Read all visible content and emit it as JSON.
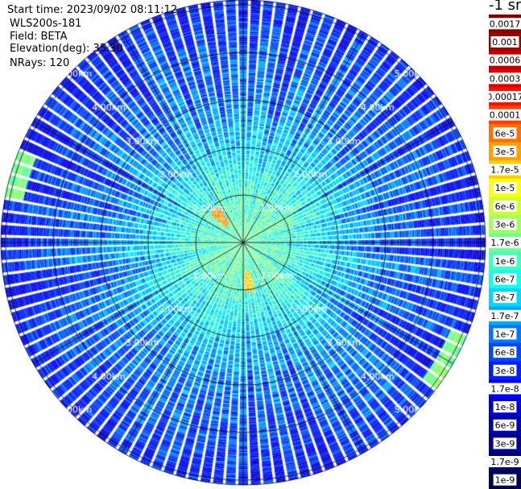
{
  "header": {
    "start_time": "Start time: 2023/09/02 08:11:12",
    "instrument": "WLS200s-181",
    "field": "Field: BETA",
    "elevation": "Elevation(deg): 35.30",
    "nrays": "NRays: 120"
  },
  "colorbar": {
    "title": "-1 sr",
    "labels": [
      "0.0017",
      "0.001",
      "0.0006",
      "0.0003",
      "0.00017",
      "0.0001",
      "6e-5",
      "3e-5",
      "1.7e-5",
      "1e-5",
      "6e-6",
      "3e-6",
      "1.7e-6",
      "1e-6",
      "6e-7",
      "3e-7",
      "1.7e-7",
      "1e-7",
      "6e-8",
      "3e-8",
      "1.7e-8",
      "1e-8",
      "6e-9",
      "3e-9",
      "1.7e-9",
      "1e-9"
    ],
    "colors": [
      "#800000",
      "#a00000",
      "#c00000",
      "#e00000",
      "#ff1000",
      "#ff4000",
      "#ff7000",
      "#ffa000",
      "#ffd000",
      "#ffff00",
      "#d0ff30",
      "#a0ff60",
      "#70ff90",
      "#40ffc0",
      "#10ffee",
      "#00d8ff",
      "#00a8ff",
      "#0078ff",
      "#0048ff",
      "#0020ff",
      "#0000ff",
      "#0000d8",
      "#0000b0",
      "#000090",
      "#000070",
      "#000050"
    ]
  },
  "chart_data": {
    "type": "heatmap",
    "projection": "polar PPI",
    "field": "BETA",
    "units": "-1 sr",
    "nrays": 120,
    "elevation_deg": 35.3,
    "range_rings_km": [
      1,
      2,
      3,
      4,
      5
    ],
    "ring_labels": [
      "1.00km",
      "2.00km",
      "3.00km",
      "4.00km",
      "5.00km"
    ],
    "radial_lines_deg_step": 30,
    "approx_max_range_km": 5.1,
    "beta_profile": [
      {
        "range_km": 0.1,
        "beta": 1.7e-06
      },
      {
        "range_km": 1.0,
        "beta": 1e-06
      },
      {
        "range_km": 2.0,
        "beta": 3e-07
      },
      {
        "range_km": 3.0,
        "beta": 1e-07
      },
      {
        "range_km": 4.0,
        "beta": 6e-08
      },
      {
        "range_km": 5.0,
        "beta": 3e-08
      }
    ],
    "hotspots": [
      {
        "azimuth_deg": 318,
        "range_km": 0.68,
        "beta": 6e-05
      },
      {
        "azimuth_deg": 172,
        "range_km": 0.8,
        "beta": 3e-05
      },
      {
        "azimuth_deg": 120,
        "range_km": 4.95,
        "beta": 3e-06
      },
      {
        "azimuth_deg": 287,
        "range_km": 4.9,
        "beta": 3e-06
      }
    ]
  }
}
